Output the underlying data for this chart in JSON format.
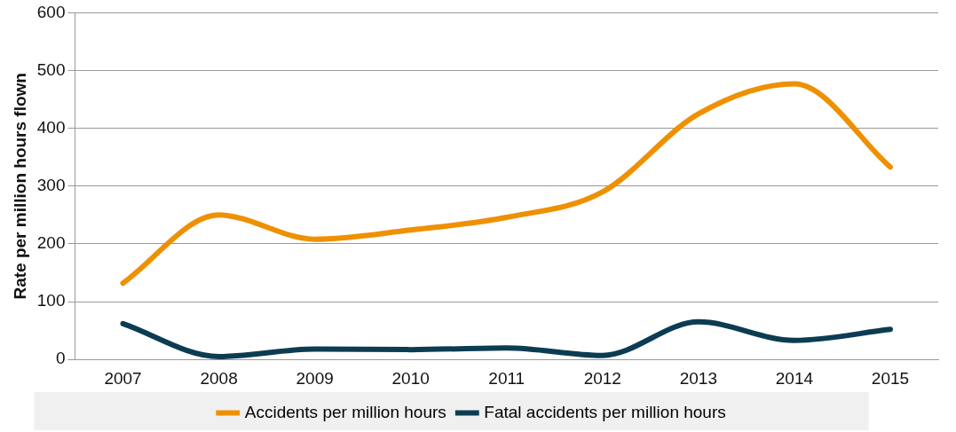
{
  "chart_data": {
    "type": "line",
    "ylabel": "Rate per million hours flown",
    "categories": [
      "2007",
      "2008",
      "2009",
      "2010",
      "2011",
      "2012",
      "2013",
      "2014",
      "2015"
    ],
    "series": [
      {
        "name": "Accidents per million hours",
        "color": "#ee9000",
        "values": [
          132,
          250,
          208,
          224,
          246,
          290,
          425,
          477,
          333
        ]
      },
      {
        "name": "Fatal accidents per million hours",
        "color": "#0c3c52",
        "values": [
          62,
          5,
          18,
          17,
          20,
          7,
          65,
          33,
          52
        ]
      }
    ],
    "ylim": [
      0,
      600
    ],
    "yticks": [
      0,
      100,
      200,
      300,
      400,
      500,
      600
    ],
    "grid": "y",
    "legend": "bottom",
    "marker": "none",
    "line_style": "solid"
  }
}
